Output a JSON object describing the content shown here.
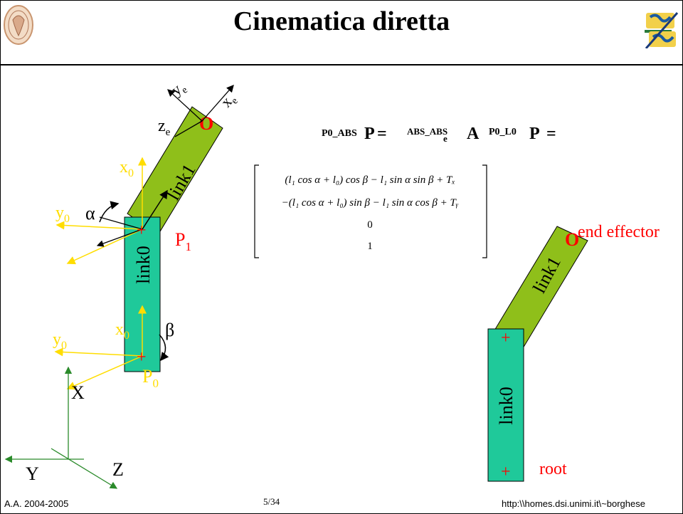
{
  "slide": {
    "title": "Cinematica diretta",
    "footer_left": "A.A. 2004-2005",
    "footer_center": "5/34",
    "footer_right": "http:\\\\homes.dsi.unimi.it\\~borghese"
  },
  "logos": {
    "left": "university-seal-icon",
    "right": "ais-lab-logo"
  },
  "diagram": {
    "link0": "link0",
    "link1": "link1",
    "x0": "x",
    "y0": "y",
    "sub0": "0",
    "alpha": "α",
    "beta": "β",
    "P": "P",
    "sub1": "1",
    "origin_O": "O",
    "xe": "x",
    "ye": "y",
    "ze": "z",
    "sub_e": "e",
    "X": "X",
    "Y": "Y",
    "Z": "Z",
    "plus": "+",
    "end_effector": "end effector",
    "root": "root"
  },
  "formula": {
    "lhs_sup": "P0_ABS",
    "P": "P",
    "eq": "=",
    "mid_sup": "ABS_ABS",
    "mid_sub": "e",
    "A": "A",
    "rhs_sup": "P0_L0",
    "matrix_row1": "(l₁ cos α + l₀) cos β − l₁ sin α sin β + Tₓ",
    "matrix_row2": "−(l₁ cos α + l₀) sin β − l₁ sin α cos β + Tᵧ",
    "matrix_row3": "0",
    "matrix_row4": "1"
  },
  "colors": {
    "link0_fill": "#1fc99a",
    "link1_fill": "#8fbf1a",
    "yellow_axes": "#ffdd00",
    "green_axes": "#2a8a2a",
    "red": "#ff0000"
  }
}
